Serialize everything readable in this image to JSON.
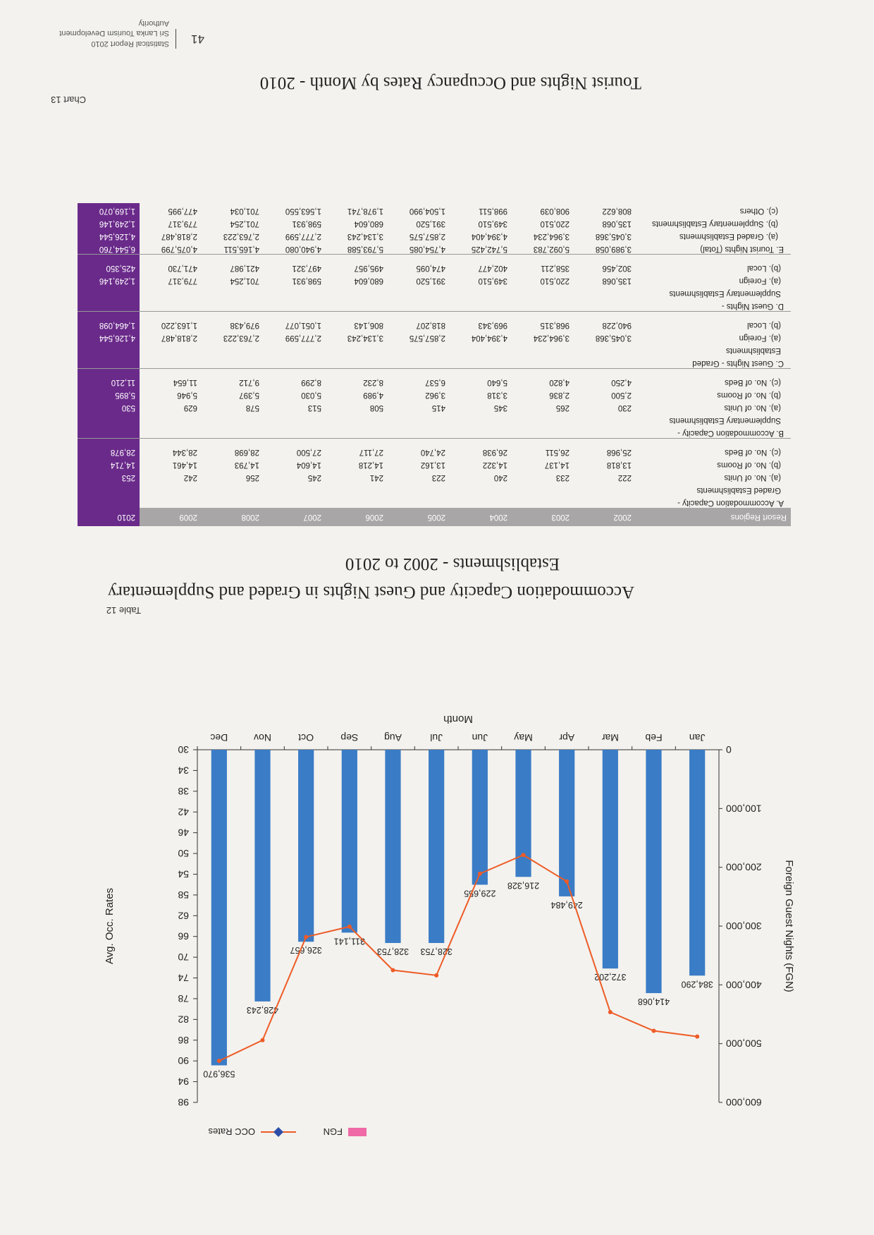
{
  "report": {
    "authority": "Sri Lanka Tourism Development Authority",
    "report_name": "Statistical Report 2010",
    "page_number": "41"
  },
  "chart_caption": {
    "label": "Chart 13",
    "title": "Tourist Nights and Occupancy Rates by Month - 2010"
  },
  "table_caption": {
    "label": "Table 12",
    "title_line1": "Accommodation Capacity and Guest Nights in Graded and Supplementary",
    "title_line2": "Establishments - 2002 to 2010"
  },
  "colors": {
    "bar": "#3a7cc6",
    "line": "#ee5b26",
    "legend_fgn": "#ef6aa6",
    "legend_occ": "#2c4ea8",
    "header": "#a8a6a6",
    "col2010": "#6a2a8a"
  },
  "chart_data": {
    "type": "bar",
    "categories": [
      "Jan",
      "Feb",
      "Mar",
      "Apr",
      "May",
      "Jun",
      "Jul",
      "Aug",
      "Sep",
      "Oct",
      "Nov",
      "Dec"
    ],
    "xlabel": "Month",
    "ylabel": "Foreign Guest Nights (FGN)",
    "y2label": "Avg. Occ. Rates",
    "ylim": [
      0,
      600000
    ],
    "y2lim": [
      30,
      98
    ],
    "yticks": [
      "0",
      "100,000",
      "200,000",
      "300,000",
      "400,000",
      "500,000",
      "600,000"
    ],
    "y2ticks": [
      "30",
      "34",
      "38",
      "42",
      "46",
      "50",
      "54",
      "58",
      "62",
      "66",
      "70",
      "74",
      "78",
      "82",
      "86",
      "90",
      "94",
      "98"
    ],
    "legend": [
      "FGN",
      "OCC Rates"
    ],
    "series": [
      {
        "name": "FGN",
        "type": "bar",
        "values": [
          384290,
          414068,
          372202,
          249484,
          216328,
          229655,
          328753,
          328753,
          311141,
          326657,
          428243,
          536970
        ],
        "labels": [
          "384,290",
          "414,068",
          "372,202",
          "249,484",
          "216,328",
          "229,655",
          "328,753",
          "328,753",
          "311,141",
          "326,657",
          "428,243",
          "536,970"
        ]
      },
      {
        "name": "OCC Rates",
        "type": "line",
        "axis": "right",
        "values": [
          85.3,
          84.2,
          80.6,
          55.4,
          50.3,
          53.9,
          73.5,
          72.5,
          64.1,
          66.1,
          86.0,
          90.0
        ]
      }
    ]
  },
  "table": {
    "headers": [
      "Resort Regions",
      "2002",
      "2003",
      "2004",
      "2005",
      "2006",
      "2007",
      "2008",
      "2009",
      "2010"
    ],
    "rows": [
      {
        "label": "A.  Accommodation Capacity -",
        "cells": [
          "",
          "",
          "",
          "",
          "",
          "",
          "",
          "",
          ""
        ]
      },
      {
        "label": "Graded Establishments",
        "indent": 1,
        "cells": [
          "",
          "",
          "",
          "",
          "",
          "",
          "",
          "",
          ""
        ]
      },
      {
        "label": "(a). No. of Units",
        "indent": 1,
        "cells": [
          "222",
          "233",
          "240",
          "223",
          "241",
          "245",
          "256",
          "242",
          "253"
        ]
      },
      {
        "label": "(b). No. of Rooms",
        "indent": 1,
        "cells": [
          "13,818",
          "14,137",
          "14,322",
          "13,162",
          "14,218",
          "14,604",
          "14,793",
          "14,461",
          "14,714"
        ]
      },
      {
        "label": "(c). No. of Beds",
        "indent": 1,
        "cells": [
          "25,968",
          "26,511",
          "26,938",
          "24,740",
          "27,117",
          "27,500",
          "28,698",
          "28,344",
          "28,978"
        ]
      },
      {
        "gap": true
      },
      {
        "label": "B.  Accommodation Capacity -",
        "section": true,
        "cells": [
          "",
          "",
          "",
          "",
          "",
          "",
          "",
          "",
          ""
        ]
      },
      {
        "label": "Supplementary Establishments",
        "indent": 1,
        "cells": [
          "",
          "",
          "",
          "",
          "",
          "",
          "",
          "",
          ""
        ]
      },
      {
        "label": "(a). No. of Units",
        "indent": 1,
        "cells": [
          "230",
          "265",
          "345",
          "415",
          "508",
          "513",
          "578",
          "629",
          "530"
        ]
      },
      {
        "label": "(b). No. of Rooms",
        "indent": 1,
        "cells": [
          "2,500",
          "2,836",
          "3,318",
          "3,962",
          "4,989",
          "5,030",
          "5,397",
          "5,946",
          "5,895"
        ]
      },
      {
        "label": "(c). No. of Beds",
        "indent": 1,
        "cells": [
          "4,250",
          "4,820",
          "5,640",
          "6,537",
          "8,232",
          "8,299",
          "9,712",
          "11,654",
          "11,210"
        ]
      },
      {
        "gap": true
      },
      {
        "label": "C.  Guest Nights - Graded",
        "section": true,
        "cells": [
          "",
          "",
          "",
          "",
          "",
          "",
          "",
          "",
          ""
        ]
      },
      {
        "label": "Establishments",
        "indent": 1,
        "cells": [
          "",
          "",
          "",
          "",
          "",
          "",
          "",
          "",
          ""
        ]
      },
      {
        "label": "(a). Foreign",
        "indent": 1,
        "cells": [
          "3,045,368",
          "3,964,234",
          "4,394,404",
          "2,857,575",
          "3,134,243",
          "2,777,599",
          "2,763,223",
          "2,818,487",
          "4,126,544"
        ]
      },
      {
        "label": "(b). Local",
        "indent": 1,
        "cells": [
          "940,228",
          "968,315",
          "969,343",
          "818,207",
          "806,143",
          "1,051,077",
          "979,438",
          "1,163,220",
          "1,464,098"
        ]
      },
      {
        "gap": true
      },
      {
        "label": "D.  Guest Nights -",
        "section": true,
        "cells": [
          "",
          "",
          "",
          "",
          "",
          "",
          "",
          "",
          ""
        ]
      },
      {
        "label": "Supplementary Establishments",
        "indent": 1,
        "cells": [
          "",
          "",
          "",
          "",
          "",
          "",
          "",
          "",
          ""
        ]
      },
      {
        "label": "(a). Foreign",
        "indent": 1,
        "cells": [
          "135,068",
          "220,510",
          "349,510",
          "391,520",
          "680,604",
          "598,931",
          "701,254",
          "779,317",
          "1,249,146"
        ]
      },
      {
        "label": "(b). Local",
        "indent": 1,
        "cells": [
          "302,456",
          "358,211",
          "402,477",
          "474,095",
          "495,957",
          "497,321",
          "421,987",
          "471,730",
          "425,350"
        ]
      },
      {
        "gap": true
      },
      {
        "label": "E.  Tourist Nights (Total)",
        "section": true,
        "cells": [
          "3,989,058",
          "5,092,783",
          "5,742,425",
          "4,754,085",
          "5,793,588",
          "4,940,080",
          "4,165,511",
          "4,075,799",
          "6,544,760"
        ]
      },
      {
        "label": "(a). Graded Establishments",
        "indent": 2,
        "cells": [
          "3,045,368",
          "3,964,234",
          "4,394,404",
          "2,857,575",
          "3,134,243",
          "2,777,599",
          "2,763,223",
          "2,818,487",
          "4,126,544"
        ]
      },
      {
        "label": "(b). Supplementary Establishments",
        "indent": 2,
        "cells": [
          "135,068",
          "220,510",
          "349,510",
          "391,520",
          "680,604",
          "598,931",
          "701,254",
          "779,317",
          "1,249,146"
        ]
      },
      {
        "label": "(c). Others",
        "indent": 2,
        "cells": [
          "808,622",
          "908,039",
          "998,511",
          "1,504,990",
          "1,978,741",
          "1,563,550",
          "701,034",
          "477,995",
          "1,169,070"
        ]
      }
    ]
  }
}
